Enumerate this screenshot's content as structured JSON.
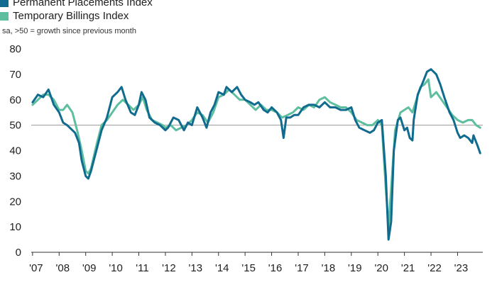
{
  "legend": {
    "items": [
      {
        "label": "Permanent Placements Index",
        "color": "#106b8f"
      },
      {
        "label": "Temporary Billings Index",
        "color": "#5dbf9f"
      }
    ]
  },
  "note": "sa, >50 = growth since previous month",
  "chart_data": {
    "type": "line",
    "title": "",
    "xlabel": "",
    "ylabel": "",
    "ylim": [
      0,
      80
    ],
    "yticks": [
      0,
      10,
      20,
      30,
      40,
      50,
      60,
      70,
      80
    ],
    "x_tick_labels": [
      "'07",
      "'08",
      "'09",
      "'10",
      "'11",
      "'12",
      "'13",
      "'14",
      "'15",
      "'16",
      "'17",
      "'18",
      "'19",
      "'20",
      "'21",
      "'22",
      "'23"
    ],
    "x_tick_years": [
      2007,
      2008,
      2009,
      2010,
      2011,
      2012,
      2013,
      2014,
      2015,
      2016,
      2017,
      2018,
      2019,
      2020,
      2021,
      2022,
      2023
    ],
    "reference_line": 50,
    "series": [
      {
        "name": "Permanent Placements Index",
        "color": "#106b8f",
        "points": [
          [
            2007.0,
            59
          ],
          [
            2007.2,
            62
          ],
          [
            2007.4,
            61
          ],
          [
            2007.6,
            64
          ],
          [
            2007.8,
            58
          ],
          [
            2008.0,
            55
          ],
          [
            2008.15,
            51
          ],
          [
            2008.3,
            50
          ],
          [
            2008.5,
            48
          ],
          [
            2008.6,
            47
          ],
          [
            2008.75,
            43
          ],
          [
            2008.85,
            36
          ],
          [
            2009.0,
            30
          ],
          [
            2009.1,
            29
          ],
          [
            2009.2,
            32
          ],
          [
            2009.4,
            40
          ],
          [
            2009.6,
            48
          ],
          [
            2009.8,
            53
          ],
          [
            2010.0,
            61
          ],
          [
            2010.2,
            63
          ],
          [
            2010.35,
            65
          ],
          [
            2010.5,
            60
          ],
          [
            2010.7,
            55
          ],
          [
            2010.85,
            54
          ],
          [
            2011.0,
            58
          ],
          [
            2011.1,
            63
          ],
          [
            2011.25,
            60
          ],
          [
            2011.4,
            53
          ],
          [
            2011.6,
            51
          ],
          [
            2011.8,
            50
          ],
          [
            2012.0,
            48
          ],
          [
            2012.1,
            49
          ],
          [
            2012.3,
            53
          ],
          [
            2012.5,
            52
          ],
          [
            2012.7,
            48
          ],
          [
            2012.85,
            51
          ],
          [
            2013.0,
            50
          ],
          [
            2013.2,
            57
          ],
          [
            2013.4,
            53
          ],
          [
            2013.55,
            49
          ],
          [
            2013.7,
            55
          ],
          [
            2013.85,
            58
          ],
          [
            2014.0,
            63
          ],
          [
            2014.2,
            62
          ],
          [
            2014.3,
            65
          ],
          [
            2014.5,
            63
          ],
          [
            2014.7,
            65
          ],
          [
            2014.85,
            62
          ],
          [
            2015.0,
            60
          ],
          [
            2015.2,
            59
          ],
          [
            2015.35,
            58
          ],
          [
            2015.5,
            59
          ],
          [
            2015.7,
            56
          ],
          [
            2015.85,
            55
          ],
          [
            2016.0,
            57
          ],
          [
            2016.2,
            55
          ],
          [
            2016.35,
            52
          ],
          [
            2016.45,
            45
          ],
          [
            2016.55,
            53
          ],
          [
            2016.7,
            53
          ],
          [
            2016.85,
            54
          ],
          [
            2017.0,
            54
          ],
          [
            2017.2,
            57
          ],
          [
            2017.4,
            58
          ],
          [
            2017.6,
            58
          ],
          [
            2017.8,
            57
          ],
          [
            2018.0,
            59
          ],
          [
            2018.2,
            57
          ],
          [
            2018.4,
            57
          ],
          [
            2018.6,
            56
          ],
          [
            2018.8,
            56
          ],
          [
            2019.0,
            57
          ],
          [
            2019.15,
            52
          ],
          [
            2019.3,
            49
          ],
          [
            2019.5,
            48
          ],
          [
            2019.7,
            47
          ],
          [
            2019.85,
            48
          ],
          [
            2020.0,
            51
          ],
          [
            2020.15,
            52
          ],
          [
            2020.3,
            30
          ],
          [
            2020.4,
            5
          ],
          [
            2020.5,
            12
          ],
          [
            2020.6,
            40
          ],
          [
            2020.75,
            52
          ],
          [
            2020.85,
            53
          ],
          [
            2021.0,
            48
          ],
          [
            2021.1,
            49
          ],
          [
            2021.2,
            45
          ],
          [
            2021.3,
            44
          ],
          [
            2021.35,
            52
          ],
          [
            2021.5,
            62
          ],
          [
            2021.7,
            67
          ],
          [
            2021.85,
            71
          ],
          [
            2022.0,
            72
          ],
          [
            2022.2,
            70
          ],
          [
            2022.35,
            66
          ],
          [
            2022.5,
            61
          ],
          [
            2022.7,
            55
          ],
          [
            2022.85,
            52
          ],
          [
            2023.0,
            47
          ],
          [
            2023.1,
            45
          ],
          [
            2023.25,
            46
          ],
          [
            2023.4,
            45
          ],
          [
            2023.55,
            43
          ],
          [
            2023.6,
            46
          ],
          [
            2023.75,
            42
          ],
          [
            2023.85,
            39
          ]
        ]
      },
      {
        "name": "Temporary Billings Index",
        "color": "#5dbf9f",
        "points": [
          [
            2007.0,
            58
          ],
          [
            2007.2,
            60
          ],
          [
            2007.4,
            62
          ],
          [
            2007.6,
            62
          ],
          [
            2007.8,
            60
          ],
          [
            2008.0,
            56
          ],
          [
            2008.15,
            56
          ],
          [
            2008.3,
            58
          ],
          [
            2008.5,
            55
          ],
          [
            2008.7,
            47
          ],
          [
            2008.85,
            40
          ],
          [
            2009.0,
            32
          ],
          [
            2009.1,
            31
          ],
          [
            2009.2,
            33
          ],
          [
            2009.4,
            42
          ],
          [
            2009.6,
            50
          ],
          [
            2009.8,
            52
          ],
          [
            2010.0,
            55
          ],
          [
            2010.2,
            58
          ],
          [
            2010.4,
            60
          ],
          [
            2010.6,
            58
          ],
          [
            2010.8,
            56
          ],
          [
            2011.0,
            58
          ],
          [
            2011.15,
            61
          ],
          [
            2011.3,
            56
          ],
          [
            2011.5,
            52
          ],
          [
            2011.7,
            51
          ],
          [
            2011.9,
            50
          ],
          [
            2012.0,
            49
          ],
          [
            2012.2,
            50
          ],
          [
            2012.4,
            48
          ],
          [
            2012.6,
            49
          ],
          [
            2012.8,
            50
          ],
          [
            2013.0,
            52
          ],
          [
            2013.2,
            55
          ],
          [
            2013.4,
            54
          ],
          [
            2013.6,
            51
          ],
          [
            2013.8,
            55
          ],
          [
            2014.0,
            61
          ],
          [
            2014.2,
            62
          ],
          [
            2014.4,
            64
          ],
          [
            2014.6,
            62
          ],
          [
            2014.8,
            60
          ],
          [
            2015.0,
            60
          ],
          [
            2015.2,
            58
          ],
          [
            2015.4,
            56
          ],
          [
            2015.6,
            58
          ],
          [
            2015.8,
            56
          ],
          [
            2016.0,
            56
          ],
          [
            2016.2,
            55
          ],
          [
            2016.4,
            53
          ],
          [
            2016.6,
            54
          ],
          [
            2016.8,
            55
          ],
          [
            2017.0,
            57
          ],
          [
            2017.2,
            56
          ],
          [
            2017.4,
            58
          ],
          [
            2017.6,
            57
          ],
          [
            2017.8,
            60
          ],
          [
            2018.0,
            61
          ],
          [
            2018.2,
            59
          ],
          [
            2018.4,
            58
          ],
          [
            2018.6,
            57
          ],
          [
            2018.8,
            57
          ],
          [
            2019.0,
            55
          ],
          [
            2019.2,
            52
          ],
          [
            2019.4,
            51
          ],
          [
            2019.6,
            50
          ],
          [
            2019.8,
            50
          ],
          [
            2020.0,
            52
          ],
          [
            2020.15,
            50
          ],
          [
            2020.3,
            25
          ],
          [
            2020.4,
            10
          ],
          [
            2020.5,
            25
          ],
          [
            2020.65,
            48
          ],
          [
            2020.85,
            55
          ],
          [
            2021.0,
            56
          ],
          [
            2021.15,
            57
          ],
          [
            2021.3,
            55
          ],
          [
            2021.45,
            60
          ],
          [
            2021.6,
            65
          ],
          [
            2021.75,
            66
          ],
          [
            2021.9,
            68
          ],
          [
            2022.0,
            61
          ],
          [
            2022.2,
            63
          ],
          [
            2022.4,
            60
          ],
          [
            2022.6,
            57
          ],
          [
            2022.8,
            54
          ],
          [
            2023.0,
            52
          ],
          [
            2023.2,
            51
          ],
          [
            2023.4,
            52
          ],
          [
            2023.55,
            52
          ],
          [
            2023.7,
            50
          ],
          [
            2023.85,
            49
          ]
        ]
      }
    ]
  }
}
